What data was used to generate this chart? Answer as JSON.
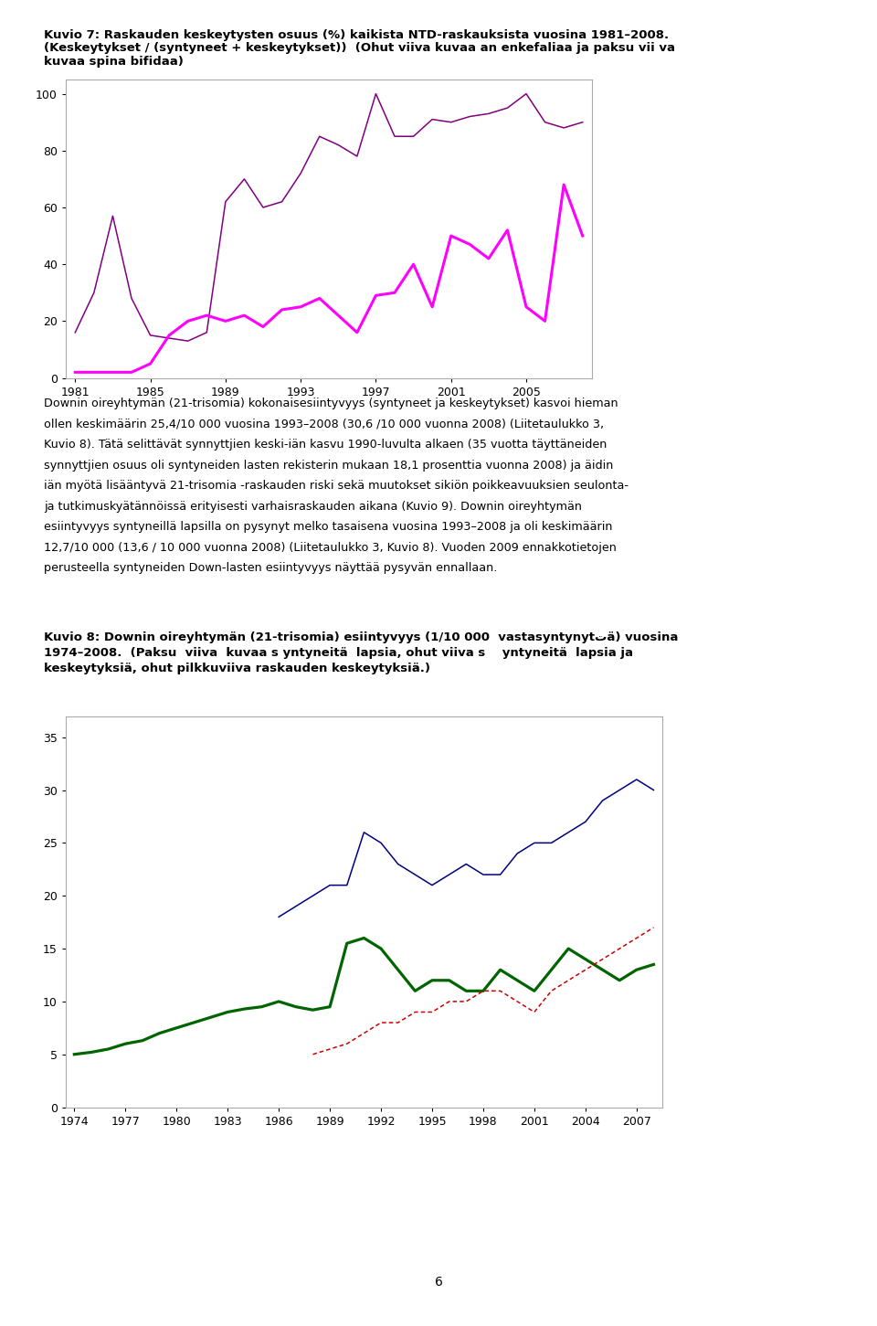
{
  "title1_line1": "Kuvio 7: Raskauden keskeytysten osuus (%) kaikista NTD-raskauksista vuosina 1981–2008.",
  "title1_line2": "(Keskeytykset / (syntyneet + keskeytykset))  (Ohut viiva kuvaa an enkefaliaa ja paksu vii va",
  "title1_line3": "kuvaa spina bifidaa)",
  "chart1_years": [
    1981,
    1982,
    1983,
    1984,
    1985,
    1986,
    1987,
    1988,
    1989,
    1990,
    1991,
    1992,
    1993,
    1994,
    1995,
    1996,
    1997,
    1998,
    1999,
    2000,
    2001,
    2002,
    2003,
    2004,
    2005,
    2006,
    2007,
    2008
  ],
  "chart1_thin": [
    16,
    30,
    57,
    28,
    15,
    14,
    13,
    16,
    62,
    70,
    60,
    62,
    72,
    85,
    82,
    78,
    100,
    85,
    85,
    91,
    90,
    92,
    93,
    95,
    100,
    90,
    88,
    90
  ],
  "chart1_thick": [
    2,
    2,
    2,
    2,
    5,
    15,
    20,
    22,
    20,
    22,
    18,
    24,
    25,
    28,
    22,
    16,
    29,
    30,
    40,
    25,
    50,
    47,
    42,
    52,
    25,
    20,
    68,
    50
  ],
  "chart1_ylim": [
    0,
    105
  ],
  "chart1_yticks": [
    0,
    20,
    40,
    60,
    80,
    100
  ],
  "chart1_xticks": [
    1981,
    1985,
    1989,
    1993,
    1997,
    2001,
    2005
  ],
  "body_lines": [
    "Downin oireyhtymän (21-trisomia) kokonaisesiintyvyys (syntyneet ja keskeytykset) kasvoi hieman",
    "ollen keskimäärin 25,4/10 000 vuosina 1993–2008 (30,6 /10 000 vuonna 2008) (Liitetaulukko 3,",
    "Kuvio 8). Tätä selittävät synnyttjien keski-iän kasvu 1990-luvulta alkaen (35 vuotta täyttäneiden",
    "synnyttjien osuus oli syntyneiden lasten rekisterin mukaan 18,1 prosenttia vuonna 2008) ja äidin",
    "iän myötä lisääntyvä 21-trisomia -raskauden riski sekä muutokset sikiön poikkeavuuksien seulonta-",
    "ja tutkimuskyätännöissä erityisesti varhaisraskauden aikana (Kuvio 9). Downin oireyhtymän",
    "esiintyvyys syntyneillä lapsilla on pysynyt melko tasaisena vuosina 1993–2008 ja oli keskimäärin",
    "12,7/10 000 (13,6 / 10 000 vuonna 2008) (Liitetaulukko 3, Kuvio 8). Vuoden 2009 ennakkotietojen",
    "perusteella syntyneiden Down-lasten esiintyvyys näyttää pysyvän ennallaan."
  ],
  "title2_line1": "Kuvio 8: Downin oireyhtymän (21-trisomia) esiintyvyys (1/10 000  vastasyntynytتä) vuosina",
  "title2_line2": "1974–2008.  (Paksu  viiva  kuvaa s yntyneitä  lapsia, ohut viiva s    yntyneitä  lapsia ja",
  "title2_line3": "keskeytyksiä, ohut pilkkuviiva raskauden keskeytyksiä.)",
  "chart2_years_green": [
    1974,
    1975,
    1976,
    1977,
    1978,
    1979,
    1980,
    1981,
    1982,
    1983,
    1984,
    1985,
    1986,
    1987,
    1988,
    1989,
    1990,
    1991,
    1992,
    1993,
    1994,
    1995,
    1996,
    1997,
    1998,
    1999,
    2000,
    2001,
    2002,
    2003,
    2004,
    2005,
    2006,
    2007,
    2008
  ],
  "chart2_green": [
    5.0,
    5.2,
    5.5,
    6.0,
    6.3,
    7.0,
    7.5,
    8.0,
    8.5,
    9.0,
    9.3,
    9.5,
    10.0,
    9.5,
    9.2,
    9.5,
    15.5,
    16.0,
    15.0,
    13.0,
    11.0,
    12.0,
    12.0,
    11.0,
    11.0,
    13.0,
    12.0,
    11.0,
    13.0,
    15.0,
    14.0,
    13.0,
    12.0,
    13.0,
    13.5
  ],
  "chart2_years_blue": [
    1986,
    1987,
    1988,
    1989,
    1990,
    1991,
    1992,
    1993,
    1994,
    1995,
    1996,
    1997,
    1998,
    1999,
    2000,
    2001,
    2002,
    2003,
    2004,
    2005,
    2006,
    2007,
    2008
  ],
  "chart2_blue": [
    18,
    19,
    20,
    21,
    21,
    26,
    25,
    23,
    22,
    21,
    22,
    23,
    22,
    22,
    24,
    25,
    25,
    26,
    27,
    29,
    30,
    31,
    30
  ],
  "chart2_years_red": [
    1988,
    1989,
    1990,
    1991,
    1992,
    1993,
    1994,
    1995,
    1996,
    1997,
    1998,
    1999,
    2000,
    2001,
    2002,
    2003,
    2004,
    2005,
    2006,
    2007,
    2008
  ],
  "chart2_red": [
    5.0,
    5.5,
    6.0,
    7.0,
    8.0,
    8.0,
    9.0,
    9.0,
    10.0,
    10.0,
    11.0,
    11.0,
    10.0,
    9.0,
    11.0,
    12.0,
    13.0,
    14.0,
    15.0,
    16.0,
    17.0
  ],
  "chart2_ylim": [
    0,
    37
  ],
  "chart2_yticks": [
    0,
    5,
    10,
    15,
    20,
    25,
    30,
    35
  ],
  "chart2_xticks": [
    1974,
    1977,
    1980,
    1983,
    1986,
    1989,
    1992,
    1995,
    1998,
    2001,
    2004,
    2007
  ],
  "page_number": "6",
  "color_thin": "#800080",
  "color_thick": "#FF00FF",
  "color_green": "#006400",
  "color_blue": "#000080",
  "color_red_dashed": "#CC0000",
  "bg_color": "#ffffff"
}
